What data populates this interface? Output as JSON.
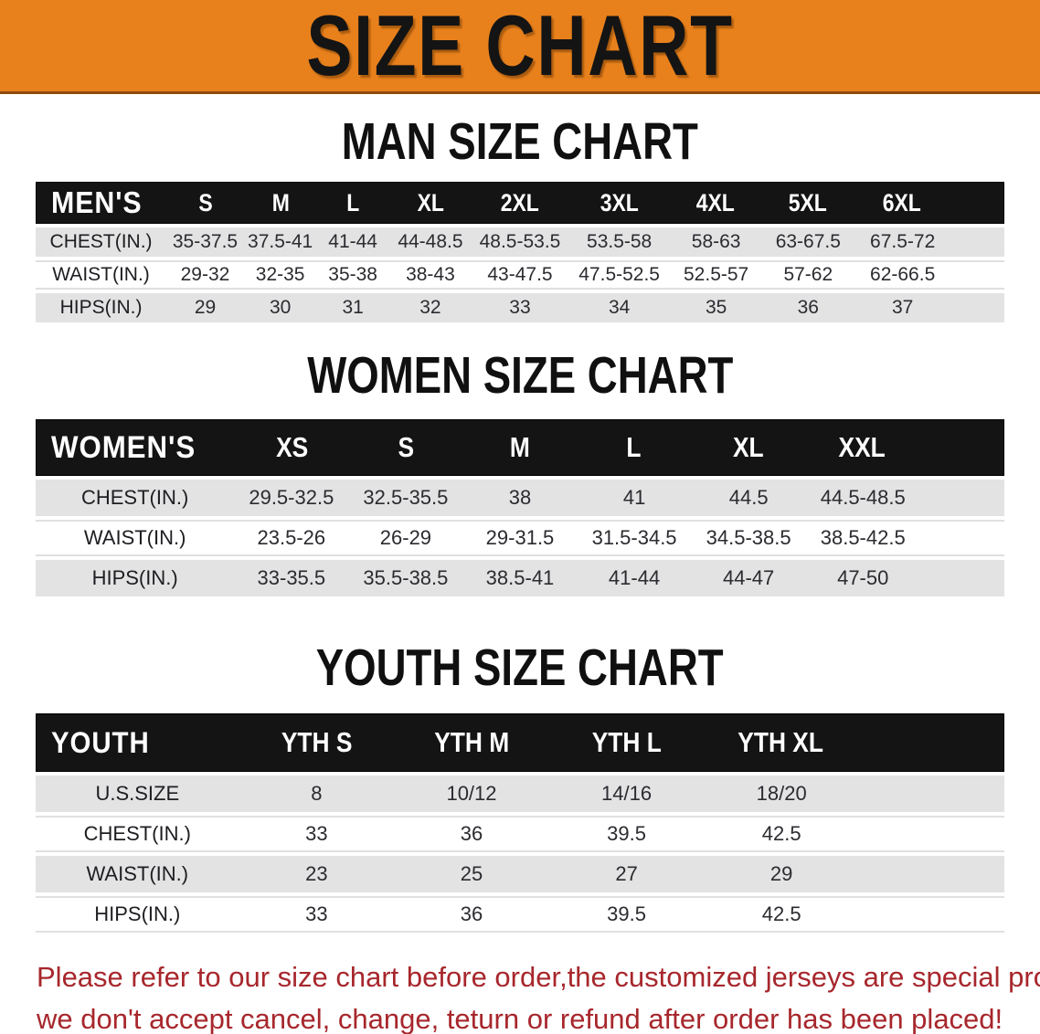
{
  "banner": {
    "title": "SIZE CHART",
    "bg_color": "#e8811c",
    "title_color": "#141414"
  },
  "sections": [
    {
      "heading": "MAN SIZE CHART",
      "table": {
        "label": "MEN'S",
        "columns": [
          "S",
          "M",
          "L",
          "XL",
          "2XL",
          "3XL",
          "4XL",
          "5XL",
          "6XL"
        ],
        "rows": [
          {
            "label": "CHEST(IN.)",
            "values": [
              "35-37.5",
              "37.5-41",
              "41-44",
              "44-48.5",
              "48.5-53.5",
              "53.5-58",
              "58-63",
              "63-67.5",
              "67.5-72"
            ]
          },
          {
            "label": "WAIST(IN.)",
            "values": [
              "29-32",
              "32-35",
              "35-38",
              "38-43",
              "43-47.5",
              "47.5-52.5",
              "52.5-57",
              "57-62",
              "62-66.5"
            ]
          },
          {
            "label": "HIPS(IN.)",
            "values": [
              "29",
              "30",
              "31",
              "32",
              "33",
              "34",
              "35",
              "36",
              "37"
            ]
          }
        ]
      }
    },
    {
      "heading": "WOMEN SIZE CHART",
      "table": {
        "label": "WOMEN'S",
        "columns": [
          "XS",
          "S",
          "M",
          "L",
          "XL",
          "XXL"
        ],
        "rows": [
          {
            "label": "CHEST(IN.)",
            "values": [
              "29.5-32.5",
              "32.5-35.5",
              "38",
              "41",
              "44.5",
              "44.5-48.5"
            ]
          },
          {
            "label": "WAIST(IN.)",
            "values": [
              "23.5-26",
              "26-29",
              "29-31.5",
              "31.5-34.5",
              "34.5-38.5",
              "38.5-42.5"
            ]
          },
          {
            "label": "HIPS(IN.)",
            "values": [
              "33-35.5",
              "35.5-38.5",
              "38.5-41",
              "41-44",
              "44-47",
              "47-50"
            ]
          }
        ]
      }
    },
    {
      "heading": "YOUTH SIZE CHART",
      "table": {
        "label": "YOUTH",
        "columns": [
          "YTH S",
          "YTH M",
          "YTH L",
          "YTH XL"
        ],
        "rows": [
          {
            "label": "U.S.SIZE",
            "values": [
              "8",
              "10/12",
              "14/16",
              "18/20"
            ]
          },
          {
            "label": "CHEST(IN.)",
            "values": [
              "33",
              "36",
              "39.5",
              "42.5"
            ]
          },
          {
            "label": "WAIST(IN.)",
            "values": [
              "23",
              "25",
              "27",
              "29"
            ]
          },
          {
            "label": "HIPS(IN.)",
            "values": [
              "33",
              "36",
              "39.5",
              "42.5"
            ]
          }
        ]
      }
    }
  ],
  "disclaimer": {
    "line1": "Please refer to our size chart before order,the customized jerseys are special products,",
    "line2": "we don't accept cancel, change, teturn or refund after order has been placed!",
    "text_color": "#a7272c"
  },
  "table_colors": {
    "header_bg": "#141414",
    "header_text": "#ffffff",
    "stripe_gray": "#e3e3e4",
    "stripe_white": "#ffffff"
  }
}
